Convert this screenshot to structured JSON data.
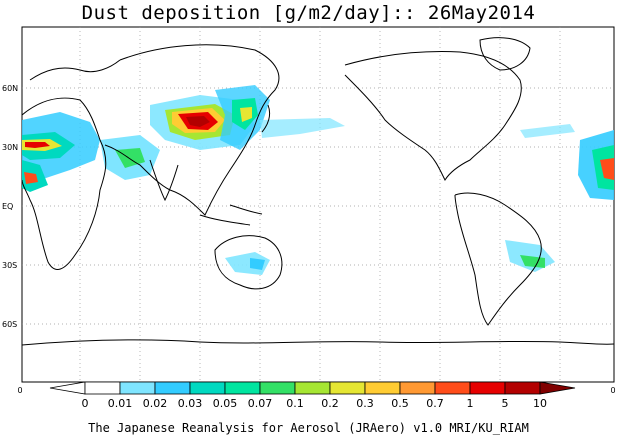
{
  "title": "Dust deposition [g/m2/day]:: 26May2014",
  "footer": "The Japanese Reanalysis for Aerosol (JRAero) v1.0 MRI/KU_RIAM",
  "latitude_labels": [
    {
      "text": "60N",
      "lat": 60
    },
    {
      "text": "30N",
      "lat": 30
    },
    {
      "text": "EQ",
      "lat": 0
    },
    {
      "text": "30S",
      "lat": -30
    },
    {
      "text": "60S",
      "lat": -60
    }
  ],
  "axis_edge_labels": {
    "left": "0",
    "right": "0"
  },
  "colorbar": {
    "labels": [
      "0",
      "0.01",
      "0.02",
      "0.03",
      "0.05",
      "0.07",
      "0.1",
      "0.2",
      "0.3",
      "0.5",
      "0.7",
      "1",
      "5",
      "10"
    ],
    "colors": [
      "#ffffff",
      "#ffffff",
      "#7fe5ff",
      "#33ccff",
      "#00d9c0",
      "#00e5a0",
      "#33e066",
      "#a6e633",
      "#e5e633",
      "#ffcc33",
      "#ff9933",
      "#ff4d1a",
      "#e60000",
      "#b30000",
      "#800000"
    ]
  },
  "colors": {
    "coast": "#000000",
    "grid": "#999999"
  }
}
